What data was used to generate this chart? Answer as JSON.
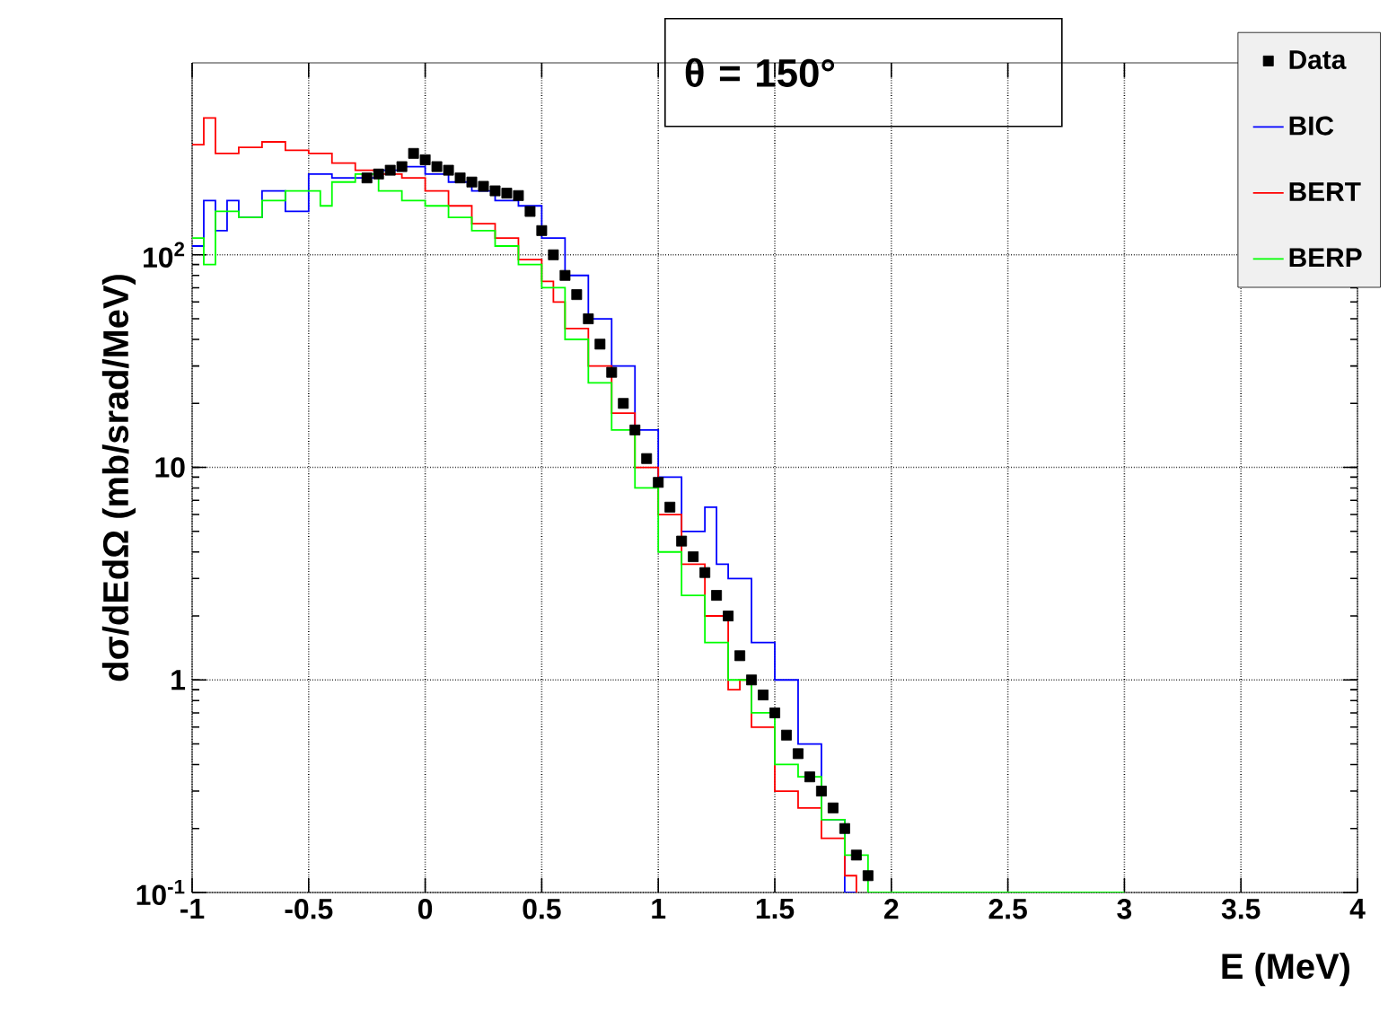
{
  "chart_data": {
    "type": "step",
    "xlabel": "E (MeV)",
    "ylabel": "dσ/dEdΩ (mb/srad/MeV)",
    "annotations": [
      "θ = 150°"
    ],
    "xlim": [
      -1,
      4
    ],
    "xticks": [
      -1,
      -0.5,
      0,
      0.5,
      1,
      1.5,
      2,
      2.5,
      3,
      3.5,
      4
    ],
    "ylim": [
      0.1,
      800
    ],
    "yticks": [
      {
        "value": 0.1,
        "label": "10$^{-1}$"
      },
      1,
      10,
      {
        "value": 100,
        "label": "10$^{2}$"
      }
    ],
    "log": "y",
    "grid": true,
    "legend": "top right",
    "series": [
      {
        "name": "Data",
        "type": "scatter",
        "marker": "square",
        "color": "#000000",
        "x": [
          -0.25,
          -0.2,
          -0.15,
          -0.1,
          -0.05,
          0,
          0.05,
          0.1,
          0.15,
          0.2,
          0.25,
          0.3,
          0.35,
          0.4,
          0.45,
          0.5,
          0.55,
          0.6,
          0.65,
          0.7,
          0.75,
          0.8,
          0.85,
          0.9,
          0.95,
          1.0,
          1.05,
          1.1,
          1.15,
          1.2,
          1.25,
          1.3,
          1.35,
          1.4,
          1.45,
          1.5,
          1.55,
          1.6,
          1.65,
          1.7,
          1.75,
          1.8,
          1.85,
          1.9
        ],
        "values": [
          230,
          240,
          250,
          260,
          300,
          280,
          260,
          250,
          230,
          220,
          210,
          200,
          195,
          190,
          160,
          130,
          100,
          80,
          65,
          50,
          38,
          28,
          20,
          15,
          11,
          8.5,
          6.5,
          4.5,
          3.8,
          3.2,
          2.5,
          2.0,
          1.3,
          1.0,
          0.85,
          0.7,
          0.55,
          0.45,
          0.35,
          0.3,
          0.25,
          0.2,
          0.15,
          0.12
        ]
      },
      {
        "name": "BIC",
        "color": "#0000ff",
        "x": [
          -1,
          -0.95,
          -0.9,
          -0.85,
          -0.8,
          -0.7,
          -0.6,
          -0.5,
          -0.4,
          -0.3,
          -0.2,
          -0.1,
          0,
          0.1,
          0.2,
          0.3,
          0.4,
          0.5,
          0.6,
          0.7,
          0.8,
          0.9,
          1.0,
          1.1,
          1.2,
          1.25,
          1.3,
          1.4,
          1.5,
          1.6,
          1.7,
          1.8,
          1.85
        ],
        "values": [
          110,
          180,
          130,
          180,
          150,
          200,
          160,
          240,
          230,
          230,
          250,
          260,
          240,
          220,
          200,
          180,
          170,
          120,
          80,
          50,
          30,
          15,
          9,
          5,
          6.5,
          3.5,
          3,
          1.5,
          1.0,
          0.5,
          0.22,
          0.1,
          0.1
        ]
      },
      {
        "name": "BERT",
        "color": "#ff0000",
        "x": [
          -1,
          -0.95,
          -0.9,
          -0.8,
          -0.7,
          -0.6,
          -0.5,
          -0.4,
          -0.3,
          -0.2,
          -0.1,
          0,
          0.1,
          0.2,
          0.3,
          0.4,
          0.5,
          0.55,
          0.6,
          0.7,
          0.8,
          0.9,
          1.0,
          1.1,
          1.2,
          1.3,
          1.35,
          1.4,
          1.5,
          1.6,
          1.7,
          1.8,
          1.85
        ],
        "values": [
          330,
          440,
          300,
          320,
          340,
          310,
          300,
          270,
          250,
          240,
          230,
          200,
          170,
          140,
          120,
          95,
          75,
          60,
          45,
          30,
          18,
          10,
          6,
          3.5,
          2.0,
          0.9,
          1.0,
          0.6,
          0.3,
          0.25,
          0.18,
          0.12,
          0.1
        ]
      },
      {
        "name": "BERP",
        "color": "#00ff00",
        "x": [
          -1,
          -0.95,
          -0.9,
          -0.8,
          -0.7,
          -0.6,
          -0.5,
          -0.45,
          -0.4,
          -0.3,
          -0.2,
          -0.1,
          0,
          0.1,
          0.2,
          0.3,
          0.4,
          0.5,
          0.6,
          0.7,
          0.8,
          0.9,
          1.0,
          1.1,
          1.2,
          1.3,
          1.4,
          1.5,
          1.6,
          1.7,
          1.8,
          1.9,
          3.0
        ],
        "values": [
          120,
          90,
          160,
          150,
          180,
          200,
          200,
          170,
          220,
          240,
          200,
          180,
          170,
          150,
          130,
          110,
          90,
          70,
          40,
          25,
          15,
          8,
          4,
          2.5,
          1.5,
          1.0,
          0.7,
          0.4,
          0.35,
          0.22,
          0.15,
          0.1,
          0.1
        ]
      }
    ]
  }
}
